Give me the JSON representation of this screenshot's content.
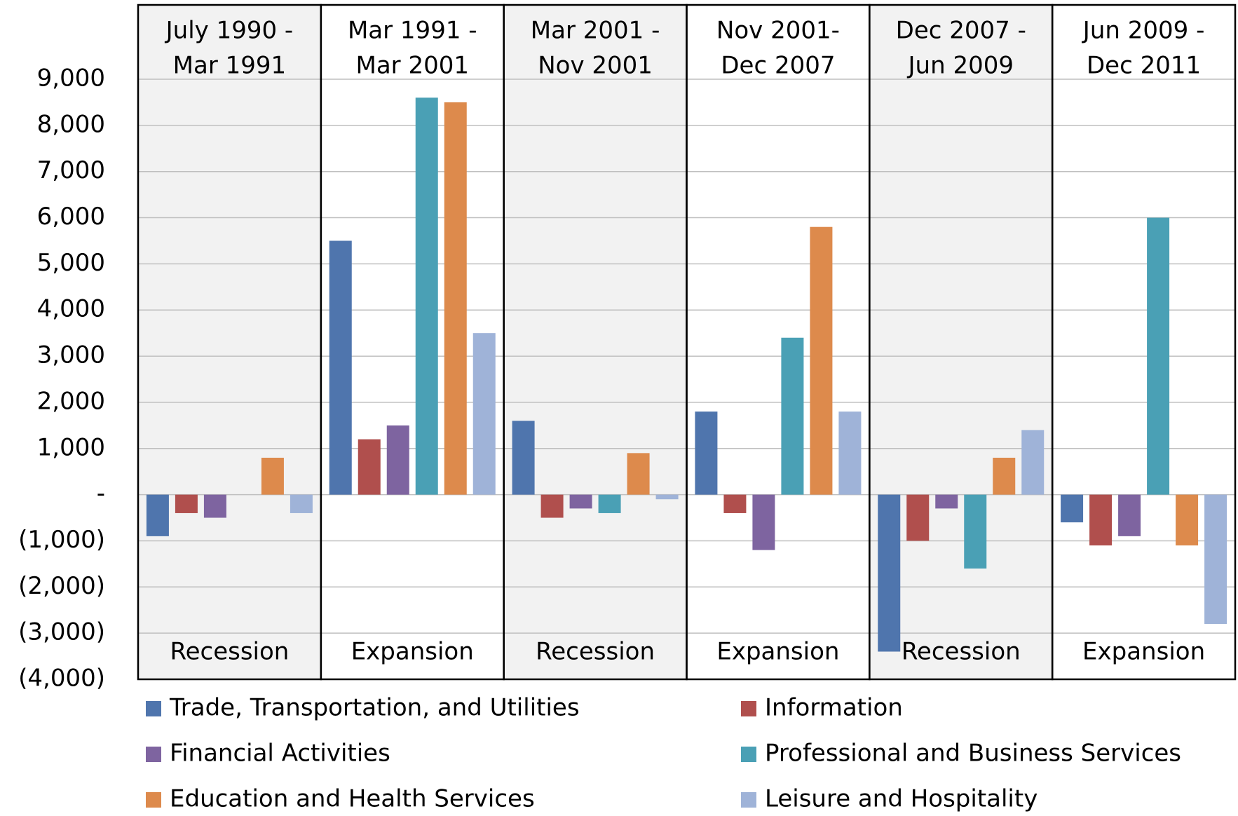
{
  "chart_data": {
    "type": "bar",
    "categories": [
      [
        "July 1990 -",
        "Mar 1991"
      ],
      [
        "Mar 1991 -",
        "Mar  2001"
      ],
      [
        "Mar 2001 -",
        "Nov 2001"
      ],
      [
        "Nov 2001-",
        "Dec 2007"
      ],
      [
        "Dec 2007 -",
        "Jun 2009"
      ],
      [
        "Jun 2009 -",
        "Dec 2011"
      ]
    ],
    "phases": [
      "Recession",
      "Expansion",
      "Recession",
      "Expansion",
      "Recession",
      "Expansion"
    ],
    "series": [
      {
        "name": "Trade, Transportation, and Utilities",
        "color": "#4f75ad",
        "values": [
          -900,
          5500,
          1600,
          1800,
          -3400,
          -600
        ]
      },
      {
        "name": "Information",
        "color": "#b04f4d",
        "values": [
          -400,
          1200,
          -500,
          -400,
          -1000,
          -1100
        ]
      },
      {
        "name": "Financial Activities",
        "color": "#7e64a0",
        "values": [
          -500,
          1500,
          -300,
          -1200,
          -300,
          -900
        ]
      },
      {
        "name": "Professional and Business Services",
        "color": "#4aa0b5",
        "values": [
          0,
          8600,
          -400,
          3400,
          -1600,
          6000
        ]
      },
      {
        "name": "Education and Health Services",
        "color": "#dd8a4c",
        "values": [
          800,
          8500,
          900,
          5800,
          800,
          -1100
        ]
      },
      {
        "name": "Leisure and Hospitality",
        "color": "#9fb3d8",
        "values": [
          -400,
          3500,
          -100,
          1800,
          1400,
          -2800
        ]
      }
    ],
    "ylim": [
      -4000,
      9000
    ],
    "yticks": [
      {
        "value": -4000,
        "label": "(4,000)"
      },
      {
        "value": -3000,
        "label": "(3,000)"
      },
      {
        "value": -2000,
        "label": "(2,000)"
      },
      {
        "value": -1000,
        "label": "(1,000)"
      },
      {
        "value": 0,
        "label": "-"
      },
      {
        "value": 1000,
        "label": "1,000"
      },
      {
        "value": 2000,
        "label": "2,000"
      },
      {
        "value": 3000,
        "label": "3,000"
      },
      {
        "value": 4000,
        "label": "4,000"
      },
      {
        "value": 5000,
        "label": "5,000"
      },
      {
        "value": 6000,
        "label": "6,000"
      },
      {
        "value": 7000,
        "label": "7,000"
      },
      {
        "value": 8000,
        "label": "8,000"
      },
      {
        "value": 9000,
        "label": "9,000"
      }
    ],
    "grid": true,
    "legend": "bottom"
  }
}
